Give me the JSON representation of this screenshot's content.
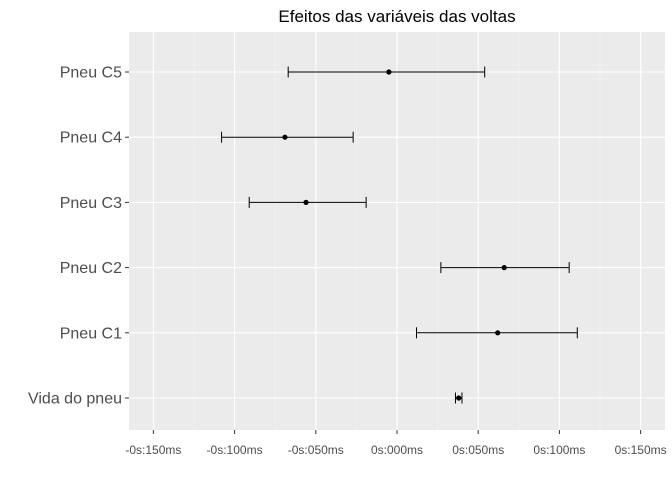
{
  "chart_data": {
    "type": "scatter",
    "title": "Efeitos das variáveis das voltas",
    "xlabel": "",
    "ylabel": "",
    "xlim": [
      -0.165,
      0.165
    ],
    "x_ticks": [
      -0.15,
      -0.1,
      -0.05,
      0,
      0.05,
      0.1,
      0.15
    ],
    "x_tick_labels": [
      "-0s:150ms",
      "-0s:100ms",
      "-0s:050ms",
      "0s:000ms",
      "0s:050ms",
      "0s:100ms",
      "0s:150ms"
    ],
    "grid": true,
    "categories": [
      "Vida do pneu",
      "Pneu C1",
      "Pneu C2",
      "Pneu C3",
      "Pneu C4",
      "Pneu C5"
    ],
    "estimates": [
      0.038,
      0.062,
      0.066,
      -0.056,
      -0.069,
      -0.005
    ],
    "lower": [
      0.036,
      0.012,
      0.027,
      -0.091,
      -0.108,
      -0.067
    ],
    "upper": [
      0.04,
      0.111,
      0.106,
      -0.019,
      -0.027,
      0.054
    ],
    "colors": {
      "panel": "#ebebeb",
      "grid_major": "#ffffff",
      "grid_minor": "#f4f4f4",
      "point": "#000000",
      "text": "#4d4d4d"
    }
  }
}
